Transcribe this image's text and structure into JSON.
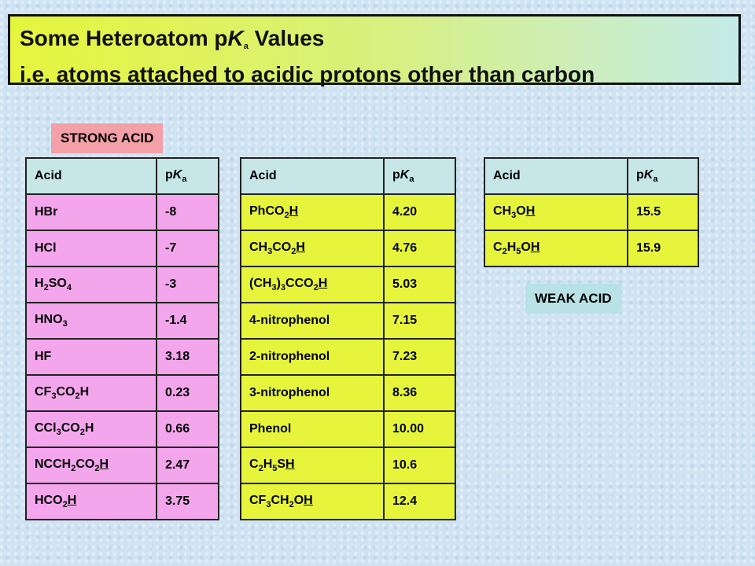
{
  "title": {
    "line1": [
      "Some Heteroatom p",
      {
        "i": "K"
      },
      {
        "sub": "a"
      },
      " Values"
    ],
    "line2": [
      "i.e. atoms attached to acidic protons other than carbon"
    ]
  },
  "strong_label": "STRONG ACID",
  "weak_label": "WEAK ACID",
  "tables": [
    {
      "color": "#f3a6ec",
      "header": [
        [
          "Acid"
        ],
        [
          "p",
          {
            "i": "K"
          },
          {
            "sub": "a"
          }
        ]
      ],
      "rows": [
        [
          [
            "HBr"
          ],
          [
            "-8"
          ]
        ],
        [
          [
            "HCl"
          ],
          [
            "-7"
          ]
        ],
        [
          [
            "H",
            {
              "sub": "2"
            },
            "SO",
            {
              "sub": "4"
            }
          ],
          [
            "-3"
          ]
        ],
        [
          [
            "HNO",
            {
              "sub": "3"
            }
          ],
          [
            "-1.4"
          ]
        ],
        [
          [
            "HF"
          ],
          [
            "3.18"
          ]
        ],
        [
          [
            "CF",
            {
              "sub": "3"
            },
            "CO",
            {
              "sub": "2"
            },
            "H"
          ],
          [
            "0.23"
          ]
        ],
        [
          [
            "CCl",
            {
              "sub": "3"
            },
            "CO",
            {
              "sub": "2"
            },
            "H"
          ],
          [
            "0.66"
          ]
        ],
        [
          [
            "NCCH",
            {
              "sub": "2"
            },
            "CO",
            {
              "sub": "2"
            },
            {
              "u": "H"
            }
          ],
          [
            "2.47"
          ]
        ],
        [
          [
            "HCO",
            {
              "sub": "2"
            },
            {
              "u": "H"
            }
          ],
          [
            "3.75"
          ]
        ]
      ]
    },
    {
      "color": "#e6f53c",
      "header": [
        [
          "Acid"
        ],
        [
          "p",
          {
            "i": "K"
          },
          {
            "sub": "a"
          }
        ]
      ],
      "rows": [
        [
          [
            "PhCO",
            {
              "sub": "2"
            },
            {
              "u": "H"
            }
          ],
          [
            "4.20"
          ]
        ],
        [
          [
            "CH",
            {
              "sub": "3"
            },
            "CO",
            {
              "sub": "2"
            },
            {
              "u": "H"
            }
          ],
          [
            "4.76"
          ]
        ],
        [
          [
            "(CH",
            {
              "sub": "3"
            },
            ")",
            {
              "sub": "3"
            },
            "CCO",
            {
              "sub": "2"
            },
            {
              "u": "H"
            }
          ],
          [
            "5.03"
          ]
        ],
        [
          [
            "4-nitrophenol"
          ],
          [
            "7.15"
          ]
        ],
        [
          [
            "2-nitrophenol"
          ],
          [
            "7.23"
          ]
        ],
        [
          [
            "3-nitrophenol"
          ],
          [
            "8.36"
          ]
        ],
        [
          [
            "Phenol"
          ],
          [
            "10.00"
          ]
        ],
        [
          [
            "C",
            {
              "sub": "2"
            },
            "H",
            {
              "sub": "5"
            },
            "S",
            {
              "u": "H"
            }
          ],
          [
            "10.6"
          ]
        ],
        [
          [
            "CF",
            {
              "sub": "3"
            },
            "CH",
            {
              "sub": "2"
            },
            "O",
            {
              "u": "H"
            }
          ],
          [
            "12.4"
          ]
        ]
      ]
    },
    {
      "color": "#e6f53c",
      "header": [
        [
          "Acid"
        ],
        [
          "p",
          {
            "i": "K"
          },
          {
            "sub": "a"
          }
        ]
      ],
      "rows": [
        [
          [
            "CH",
            {
              "sub": "3"
            },
            "O",
            {
              "u": "H"
            }
          ],
          [
            "15.5"
          ]
        ],
        [
          [
            "C",
            {
              "sub": "2"
            },
            "H",
            {
              "sub": "5"
            },
            "O",
            {
              "u": "H"
            }
          ],
          [
            "15.9"
          ]
        ]
      ]
    }
  ]
}
